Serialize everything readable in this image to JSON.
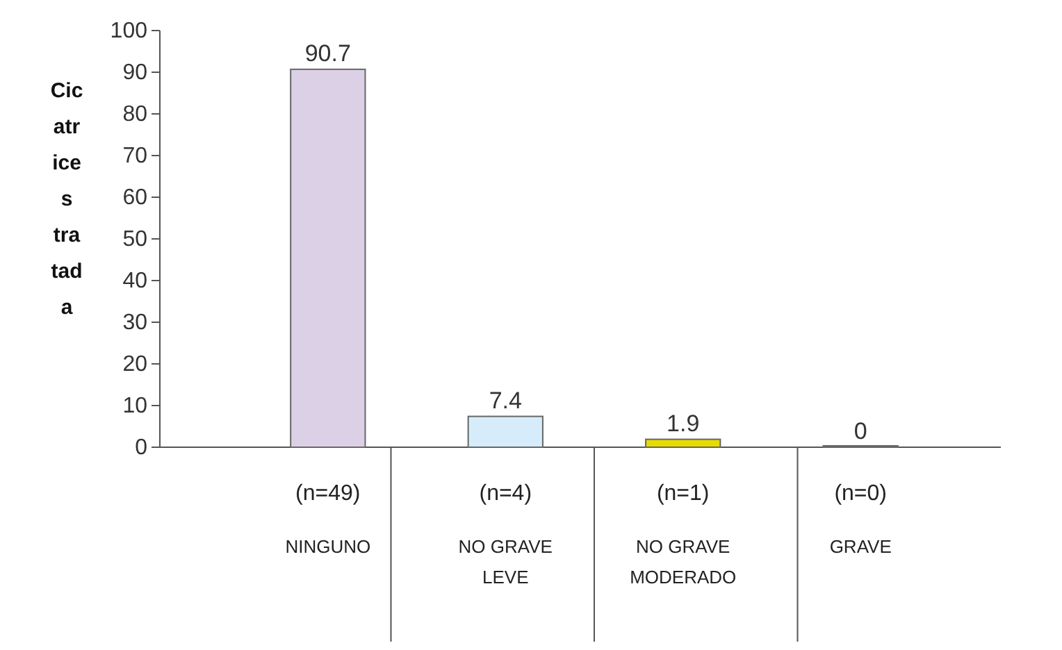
{
  "chart_data": {
    "type": "bar",
    "ylabel": "Cicatrices tratada",
    "categories": [
      "(n=49)\nNINGUNO",
      "(n=4)\nNO GRAVE\nLEVE",
      "(n=1)\nNO GRAVE\nMODERADO",
      "(n=0)\nGRAVE"
    ],
    "values": [
      90.7,
      7.4,
      1.9,
      0
    ],
    "colors": [
      "#dcd0e6",
      "#d6ecfa",
      "#e6dc00",
      "#cccccc"
    ],
    "ylim": [
      0,
      100
    ],
    "yticks": [
      0,
      10,
      20,
      30,
      40,
      50,
      60,
      70,
      80,
      90,
      100
    ],
    "data_labels": true,
    "grid": false
  }
}
